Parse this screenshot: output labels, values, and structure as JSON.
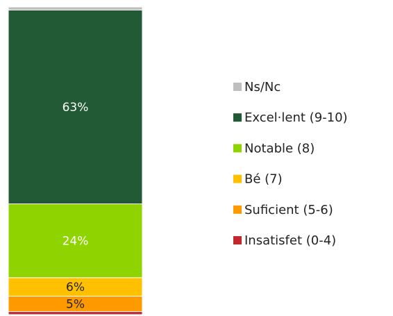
{
  "chart_data": {
    "type": "stacked_bar",
    "ylim": [
      0,
      100
    ],
    "series": [
      {
        "name": "Ns/Nc",
        "color": "#bfbfbf",
        "values": [
          1
        ],
        "value_labels": [
          null
        ]
      },
      {
        "name": "Excel·lent (9-10)",
        "color": "#215a35",
        "values": [
          63
        ],
        "value_labels": [
          "63%"
        ]
      },
      {
        "name": "Notable (8)",
        "color": "#8fd400",
        "values": [
          24
        ],
        "value_labels": [
          "24%"
        ]
      },
      {
        "name": "Bé (7)",
        "color": "#ffc000",
        "values": [
          6
        ],
        "value_labels": [
          "6%"
        ]
      },
      {
        "name": "Suficient (5-6)",
        "color": "#ff9900",
        "values": [
          5
        ],
        "value_labels": [
          "5%"
        ]
      },
      {
        "name": "Insatisfet (0-4)",
        "color": "#c0282d",
        "values": [
          1
        ],
        "value_labels": [
          null
        ]
      }
    ]
  }
}
